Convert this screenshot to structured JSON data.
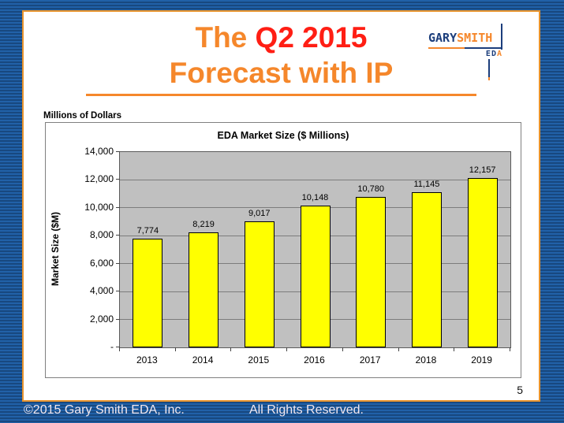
{
  "slide": {
    "title_line1_part1": "The ",
    "title_line1_part2": "Q2 2015",
    "title_line2": "Forecast with IP",
    "page_number": "5"
  },
  "logo": {
    "gary": "GARY",
    "smith": "SMITH",
    "eda_ed": "ED",
    "eda_a": "A"
  },
  "chart_data": {
    "type": "bar",
    "title": "EDA Market Size ($ Millions)",
    "above_label": "Millions of Dollars",
    "ylabel": "Market Size ($M)",
    "categories": [
      "2013",
      "2014",
      "2015",
      "2016",
      "2017",
      "2018",
      "2019"
    ],
    "values": [
      7774,
      8219,
      9017,
      10148,
      10780,
      11145,
      12157
    ],
    "value_labels": [
      "7,774",
      "8,219",
      "9,017",
      "10,148",
      "10,780",
      "11,145",
      "12,157"
    ],
    "ylim": [
      0,
      14000
    ],
    "ytick_step": 2000,
    "ytick_labels_top_to_bottom": [
      "14,000",
      "12,000",
      "10,000",
      "8,000",
      "6,000",
      "4,000",
      "2,000",
      "-"
    ],
    "grid": true,
    "legend_position": "none",
    "bar_color": "#FFFF00",
    "bar_border_color": "#000000",
    "plot_bg_color": "#C0C0C0"
  },
  "footer": {
    "copyright": "©2015 Gary Smith EDA, Inc.",
    "rights": "All Rights Reserved."
  },
  "colors": {
    "title_orange": "#F5872B",
    "title_red": "#FF1E14",
    "logo_navy": "#1C3E7C",
    "card_border_orange": "#E8932C",
    "background_blue": "#1B5292",
    "footer_text": "#F2E8F0"
  }
}
